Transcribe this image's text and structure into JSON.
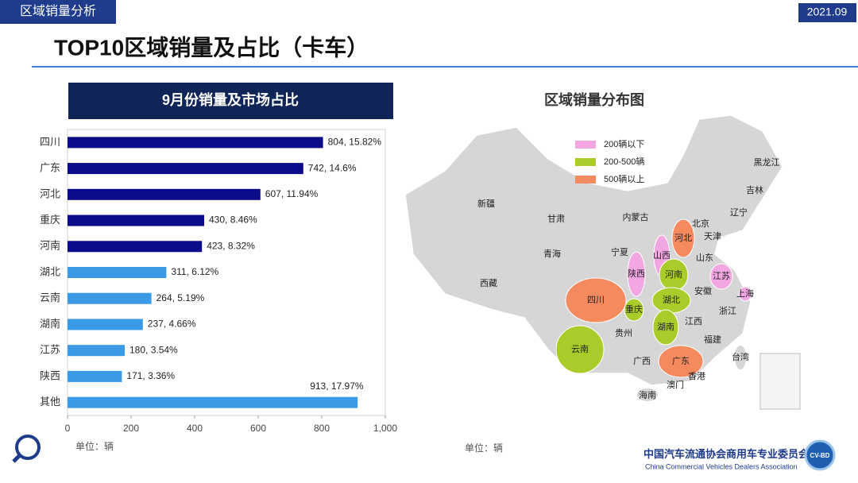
{
  "header": {
    "section": "区域销量分析",
    "date": "2021.09",
    "title": "TOP10区域销量及占比（卡车）"
  },
  "chart_data": {
    "type": "bar",
    "orientation": "horizontal",
    "title": "9月份销量及市场占比",
    "categories": [
      "四川",
      "广东",
      "河北",
      "重庆",
      "河南",
      "湖北",
      "云南",
      "湖南",
      "江苏",
      "陕西",
      "其他"
    ],
    "values": [
      804,
      742,
      607,
      430,
      423,
      311,
      264,
      237,
      180,
      171,
      913
    ],
    "value_labels": [
      "804, 15.82%",
      "742, 14.6%",
      "607, 11.94%",
      "430, 8.46%",
      "423, 8.32%",
      "311, 6.12%",
      "264, 5.19%",
      "237, 4.66%",
      "180, 3.54%",
      "171, 3.36%",
      "913, 17.97%"
    ],
    "colors": [
      "#0c0c8a",
      "#0c0c8a",
      "#0c0c8a",
      "#0c0c8a",
      "#0c0c8a",
      "#3a9ae6",
      "#3a9ae6",
      "#3a9ae6",
      "#3a9ae6",
      "#3a9ae6",
      "#3a9ae6"
    ],
    "xlim": [
      0,
      1000
    ],
    "xticks": [
      0,
      200,
      400,
      600,
      800,
      {
        "value": 1000,
        "label": "1,000"
      }
    ],
    "x_label": "单位：辆",
    "grid": false
  },
  "map": {
    "title": "区域销量分布图",
    "unit": "单位：辆",
    "legend": [
      {
        "name": "200辆以下",
        "color": "#f2a6e2",
        "provinces": [
          "山西",
          "陕西",
          "江苏",
          "上海"
        ]
      },
      {
        "name": "200-500辆",
        "color": "#a9cc2a",
        "provinces": [
          "河南",
          "湖北",
          "湖南",
          "重庆",
          "云南"
        ]
      },
      {
        "name": "500辆以上",
        "color": "#f58a5e",
        "provinces": [
          "四川",
          "河北",
          "广东"
        ]
      }
    ],
    "provinces": [
      "新疆",
      "西藏",
      "青海",
      "甘肃",
      "内蒙古",
      "宁夏",
      "黑龙江",
      "吉林",
      "辽宁",
      "北京",
      "天津",
      "山东",
      "安徽",
      "浙江",
      "江西",
      "福建",
      "贵州",
      "广西",
      "香港",
      "澳门",
      "台湾",
      "海南"
    ]
  },
  "footer": {
    "org_cn": "中国汽车流通协会商用车专业委员会",
    "org_en": "China Commercial Vehicles Dealers Association",
    "badge": "CV-BD"
  }
}
